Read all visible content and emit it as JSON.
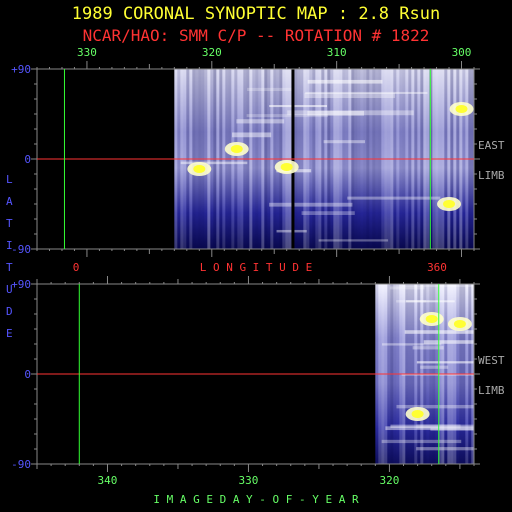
{
  "title": "1989 CORONAL SYNOPTIC MAP : 2.8 Rsun",
  "subtitle": "NCAR/HAO: SMM C/P -- ROTATION # 1822",
  "colors": {
    "title": "#ffff33",
    "subtitle": "#ff3333",
    "axis_text": "#5555ff",
    "tick_text": "#66ff66",
    "red": "#ff3333",
    "green": "#33ff33",
    "frame": "#888888"
  },
  "chart_data": [
    {
      "type": "heatmap",
      "panel": "east",
      "top_axis_ticks": [
        "330",
        "320",
        "310",
        "300"
      ],
      "top_axis_values": [
        330,
        320,
        310,
        300
      ],
      "bottom_axis_ticks": [
        "0",
        "360"
      ],
      "bottom_axis_values": [
        0,
        360
      ],
      "bottom_axis_label": "L O N G I T U D E",
      "xlim": [
        334,
        299
      ],
      "y_ticks": [
        "+90",
        "0",
        "-90"
      ],
      "ylim": [
        -90,
        90
      ],
      "right_label_top": "EAST",
      "right_label_bottom": "LIMB",
      "data_start": 323,
      "gap_longitude": 313.5,
      "green_line_longitude": 331.8,
      "green_line_longitude_2": 302.5,
      "bright_features": [
        {
          "lon": 321,
          "lat": -10
        },
        {
          "lon": 314,
          "lat": -8
        },
        {
          "lon": 318,
          "lat": 10
        },
        {
          "lon": 301,
          "lat": -45
        },
        {
          "lon": 300,
          "lat": 50
        }
      ]
    },
    {
      "type": "heatmap",
      "panel": "west",
      "bottom_axis_ticks": [
        "340",
        "330",
        "320"
      ],
      "bottom_axis_values": [
        340,
        330,
        320
      ],
      "bottom_axis_label": "I M A G E   D A Y - O F - Y E A R",
      "xlim": [
        345,
        314
      ],
      "y_ticks": [
        "+90",
        "0",
        "-90"
      ],
      "ylim": [
        -90,
        90
      ],
      "right_label_top": "WEST",
      "right_label_bottom": "LIMB",
      "data_start": 321,
      "green_line_day": 342,
      "green_line_day_2": 316.5,
      "bright_features": [
        {
          "day": 317,
          "lat": 55
        },
        {
          "day": 318,
          "lat": -40
        },
        {
          "day": 315,
          "lat": 50
        }
      ]
    }
  ],
  "side_label": "L A T I T U D E"
}
